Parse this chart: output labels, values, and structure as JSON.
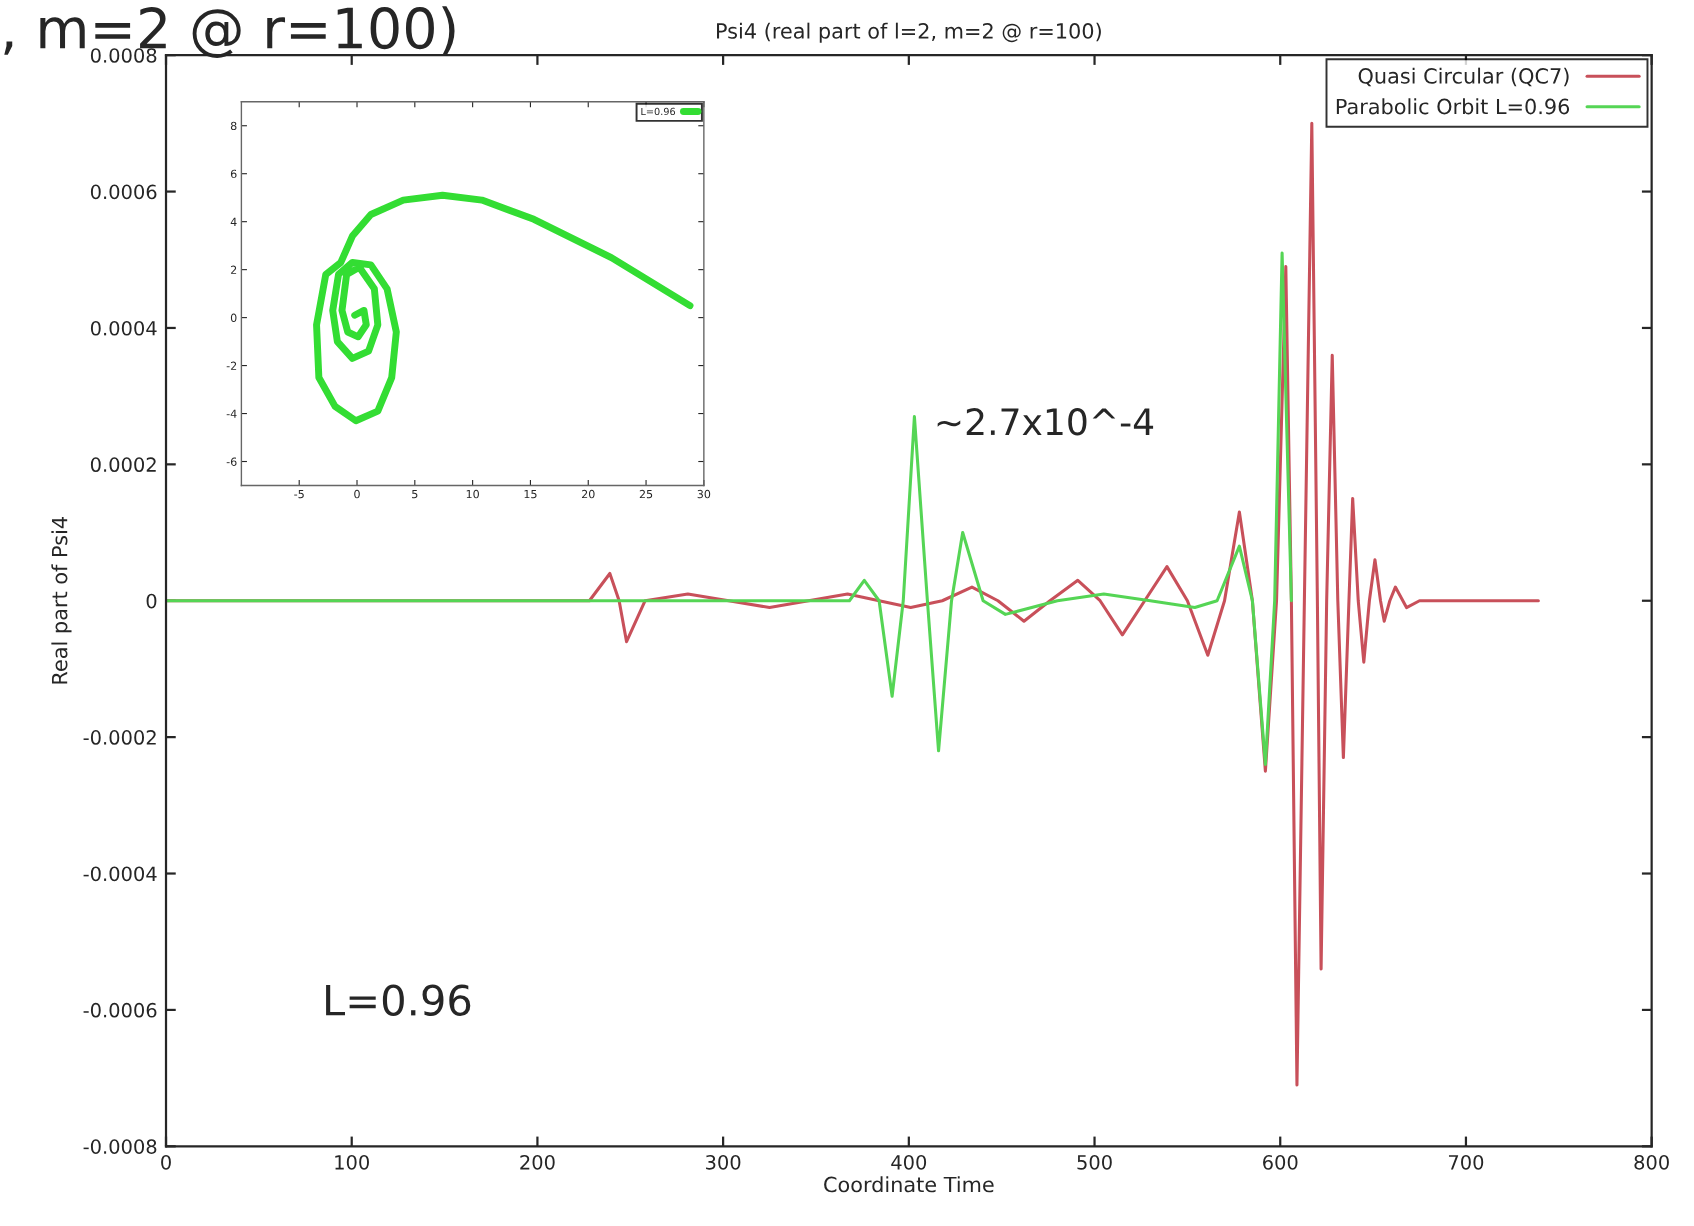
{
  "chart_data": [
    {
      "type": "line",
      "title": "Psi4 (real part of l=2, m=2 @ r=100)",
      "xlabel": "Coordinate Time",
      "ylabel": "Real part of Psi4",
      "xlim": [
        0,
        800
      ],
      "xticks": [
        0,
        100,
        200,
        300,
        400,
        500,
        600,
        700,
        800
      ],
      "ylim": [
        -0.0008,
        0.0008
      ],
      "yticks": [
        {
          "value": -0.0008,
          "label": "-0.0008"
        },
        {
          "value": -0.0006,
          "label": "-0.0006"
        },
        {
          "value": -0.0004,
          "label": "-0.0004"
        },
        {
          "value": -0.0002,
          "label": "-0.0002"
        },
        {
          "value": 0,
          "label": "0"
        },
        {
          "value": 0.0002,
          "label": "0.0002"
        },
        {
          "value": 0.0004,
          "label": "0.0004"
        },
        {
          "value": 0.0006,
          "label": "0.0006"
        },
        {
          "value": 0.0008,
          "label": "0.0008"
        }
      ],
      "grid": false,
      "legend": "top right",
      "marker": "none",
      "line_style": "solid",
      "series": [
        {
          "name": "Quasi Circular (QC7)",
          "color": "#c8505a",
          "x": [
            0,
            200,
            228,
            239,
            244,
            248,
            258,
            281,
            303,
            325,
            346,
            367,
            384,
            401,
            418,
            434,
            448,
            462,
            476,
            491,
            503,
            515,
            527,
            539,
            550,
            561,
            570,
            578,
            585,
            592,
            598,
            603,
            606,
            609,
            613,
            617,
            620,
            622,
            625,
            628,
            631,
            634,
            637,
            639,
            642,
            645,
            648,
            651,
            654,
            656,
            659,
            662,
            668,
            675,
            690,
            739
          ],
          "values": [
            0,
            0,
            0,
            4e-05,
            0,
            -6e-05,
            0,
            1e-05,
            0,
            -1e-05,
            0,
            1e-05,
            0,
            -1e-05,
            0,
            2e-05,
            0,
            -3e-05,
            0,
            3e-05,
            0,
            -5e-05,
            0,
            5e-05,
            0,
            -8e-05,
            0,
            0.00013,
            0,
            -0.00025,
            0,
            0.00049,
            0,
            -0.00071,
            0,
            0.0007,
            0,
            -0.00054,
            0,
            0.00036,
            0,
            -0.00023,
            0,
            0.00015,
            0,
            -9e-05,
            0,
            6e-05,
            0,
            -3e-05,
            0,
            2e-05,
            -1e-05,
            0,
            0,
            0
          ]
        },
        {
          "name": "Parabolic Orbit L=0.96",
          "color": "#55d555",
          "x": [
            0,
            340,
            368,
            376,
            384,
            391,
            397,
            403,
            410,
            416,
            423,
            429,
            440,
            452,
            480,
            505,
            530,
            554,
            566,
            578,
            585,
            592,
            597,
            601,
            606
          ],
          "values": [
            0,
            0,
            0,
            3e-05,
            0,
            -0.00014,
            0,
            0.00027,
            0,
            -0.00022,
            0,
            0.0001,
            0,
            -2e-05,
            0,
            1e-05,
            0,
            -1e-05,
            0,
            8e-05,
            0,
            -0.00024,
            0,
            0.00051,
            0
          ]
        }
      ],
      "annotations": [
        {
          "text": "~2.7x10^-4",
          "x": 403,
          "y": 0.00027
        },
        "L=0.96",
        ", m=2 @ r=100)"
      ]
    },
    {
      "type": "line",
      "marker": "none",
      "line_style": "solid",
      "legend": "top right",
      "grid": false,
      "xlim": [
        -10,
        30
      ],
      "xticks": [
        -5,
        0,
        5,
        10,
        15,
        20,
        25,
        30
      ],
      "ylim": [
        -7,
        9
      ],
      "yticks": [
        -6,
        -4,
        -2,
        0,
        2,
        4,
        6,
        8
      ],
      "series": [
        {
          "name": "L=0.96",
          "color": "#33dd33",
          "x": [
            28.8,
            22.0,
            15.3,
            10.8,
            7.4,
            4.0,
            1.2,
            -0.4,
            -1.4,
            -2.7,
            -3.5,
            -3.3,
            -1.9,
            -0.1,
            1.8,
            3.0,
            3.4,
            2.6,
            1.2,
            -0.4,
            -1.6,
            -2.1,
            -1.7,
            -0.4,
            1.0,
            1.8,
            1.5,
            0.2,
            -0.9,
            -1.3,
            -0.8,
            0.1,
            0.8,
            0.6,
            -0.2
          ],
          "values": [
            0.5,
            2.5,
            4.1,
            4.9,
            5.1,
            4.9,
            4.3,
            3.4,
            2.3,
            1.8,
            -0.3,
            -2.5,
            -3.7,
            -4.3,
            -3.9,
            -2.5,
            -0.6,
            1.2,
            2.2,
            2.3,
            1.8,
            0.3,
            -1.0,
            -1.7,
            -1.4,
            -0.3,
            1.2,
            2.1,
            1.8,
            0.3,
            -0.6,
            -0.8,
            -0.3,
            0.3,
            0.1
          ]
        }
      ]
    }
  ]
}
